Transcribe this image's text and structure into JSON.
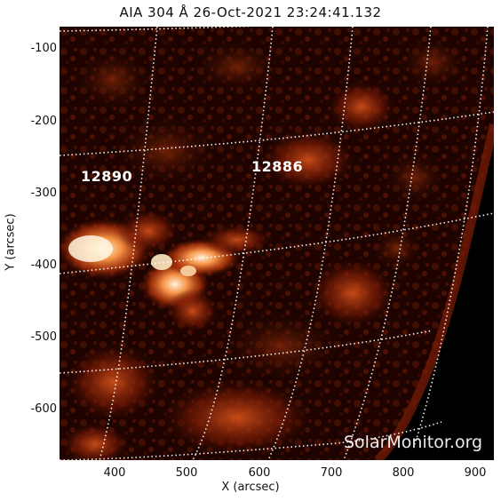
{
  "header": {
    "title": "AIA 304 Å 26-Oct-2021 23:24:41.132"
  },
  "axes": {
    "xlabel": "X (arcsec)",
    "ylabel": "Y (arcsec)",
    "x_ticks": [
      "400",
      "500",
      "600",
      "700",
      "800",
      "900"
    ],
    "y_ticks": [
      "-100",
      "-200",
      "-300",
      "-400",
      "-500",
      "-600"
    ]
  },
  "regions": [
    {
      "id": "12890"
    },
    {
      "id": "12886"
    }
  ],
  "watermark": "SolarMonitor.org",
  "colors": {
    "background": "#000000",
    "emission_low": "#3a0a00",
    "emission_mid": "#b8360a",
    "emission_high": "#ffd9a0",
    "grid": "#ffffff"
  }
}
